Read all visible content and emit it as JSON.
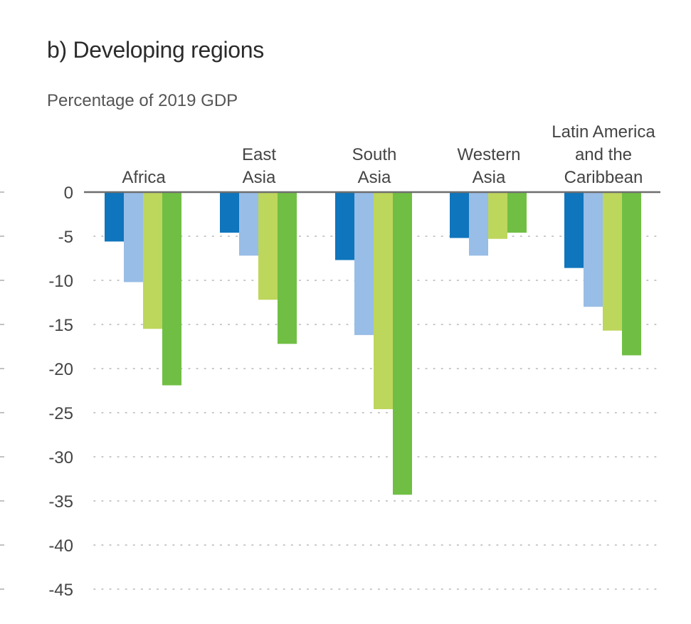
{
  "chart_data": {
    "type": "bar",
    "title": "b) Developing regions",
    "ylabel": "Percentage of 2019 GDP",
    "ylim": [
      -45,
      0
    ],
    "yticks": [
      0,
      -5,
      -10,
      -15,
      -20,
      -25,
      -30,
      -35,
      -40,
      -45
    ],
    "grid": "dotted horizontal",
    "categories": [
      [
        "Africa"
      ],
      [
        "East",
        "Asia"
      ],
      [
        "South",
        "Asia"
      ],
      [
        "Western",
        "Asia"
      ],
      [
        "Latin America",
        "and the",
        "Caribbean"
      ]
    ],
    "series": [
      {
        "color": "#0f75bc",
        "values": [
          -5.6,
          -4.6,
          -7.7,
          -5.2,
          -8.6
        ]
      },
      {
        "color": "#98bde6",
        "values": [
          -10.2,
          -7.2,
          -16.2,
          -7.2,
          -13.0
        ]
      },
      {
        "color": "#bdd65c",
        "values": [
          -15.5,
          -12.2,
          -24.6,
          -5.3,
          -15.7
        ]
      },
      {
        "color": "#70bf44",
        "values": [
          -21.9,
          -17.2,
          -34.3,
          -4.6,
          -18.5
        ]
      }
    ]
  }
}
